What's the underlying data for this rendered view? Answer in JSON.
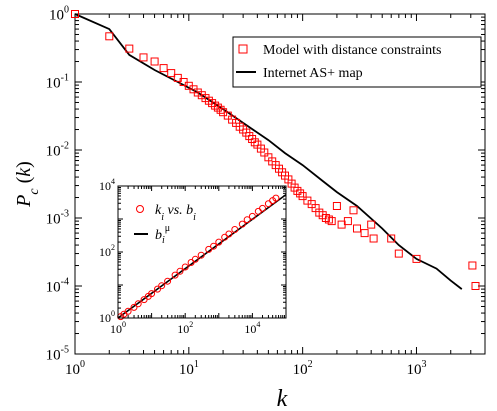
{
  "chart_data": [
    {
      "type": "scatter",
      "title": "",
      "xlabel": "k",
      "ylabel": "P_c (k)",
      "xscale": "log",
      "yscale": "log",
      "xlim": [
        1,
        4000
      ],
      "ylim": [
        1e-05,
        1
      ],
      "x_ticks": [
        {
          "value": 1,
          "base": "10",
          "exp": "0"
        },
        {
          "value": 10,
          "base": "10",
          "exp": "1"
        },
        {
          "value": 100,
          "base": "10",
          "exp": "2"
        },
        {
          "value": 1000,
          "base": "10",
          "exp": "3"
        }
      ],
      "y_ticks": [
        {
          "value": 1e-05,
          "base": "10",
          "exp": "-5"
        },
        {
          "value": 0.0001,
          "base": "10",
          "exp": "-4"
        },
        {
          "value": 0.001,
          "base": "10",
          "exp": "-3"
        },
        {
          "value": 0.01,
          "base": "10",
          "exp": "-2"
        },
        {
          "value": 0.1,
          "base": "10",
          "exp": "-1"
        },
        {
          "value": 1,
          "base": "10",
          "exp": "0"
        }
      ],
      "grid": false,
      "legend_position": "top-right",
      "series": [
        {
          "name": "Model with distance constraints",
          "kind": "scatter",
          "marker": "open-square",
          "color": "#ff0000",
          "x": [
            1,
            2,
            3,
            4,
            5,
            6,
            7,
            8,
            9,
            10,
            11,
            12,
            13,
            14,
            15,
            16,
            17,
            18,
            19,
            20,
            22,
            24,
            26,
            28,
            30,
            32,
            34,
            36,
            38,
            40,
            43,
            46,
            50,
            54,
            58,
            62,
            66,
            70,
            75,
            80,
            85,
            90,
            95,
            100,
            110,
            120,
            130,
            140,
            150,
            160,
            170,
            180,
            200,
            220,
            250,
            280,
            300,
            350,
            400,
            420,
            600,
            700,
            1000,
            3100,
            3300
          ],
          "y": [
            1.0,
            0.47,
            0.31,
            0.23,
            0.2,
            0.16,
            0.135,
            0.115,
            0.1,
            0.088,
            0.078,
            0.07,
            0.064,
            0.058,
            0.053,
            0.049,
            0.045,
            0.042,
            0.039,
            0.036,
            0.032,
            0.028,
            0.025,
            0.022,
            0.02,
            0.018,
            0.016,
            0.0145,
            0.013,
            0.012,
            0.0105,
            0.0092,
            0.0078,
            0.0068,
            0.006,
            0.0053,
            0.0047,
            0.0042,
            0.0037,
            0.0032,
            0.0028,
            0.0025,
            0.0023,
            0.0021,
            0.0018,
            0.0016,
            0.0014,
            0.0012,
            0.0011,
            0.001,
            0.00095,
            0.0009,
            0.0015,
            0.0008,
            0.0009,
            0.0013,
            0.0007,
            0.0006,
            0.0008,
            0.0005,
            0.0005,
            0.0003,
            0.00025,
            0.0002,
            0.0001
          ]
        },
        {
          "name": "Internet AS+ map",
          "kind": "line",
          "color": "#000000",
          "x": [
            1,
            2,
            3,
            5,
            8,
            12,
            20,
            30,
            50,
            70,
            100,
            150,
            200,
            300,
            500,
            700,
            1000,
            1500,
            2000,
            2500
          ],
          "y": [
            1.0,
            0.6,
            0.25,
            0.15,
            0.1,
            0.07,
            0.04,
            0.025,
            0.014,
            0.009,
            0.006,
            0.0035,
            0.0024,
            0.0015,
            0.0007,
            0.0004,
            0.00025,
            0.00018,
            0.00012,
            9e-05
          ]
        }
      ]
    },
    {
      "type": "scatter",
      "title": "",
      "xlabel": "",
      "ylabel": "",
      "xscale": "log",
      "yscale": "log",
      "xlim": [
        1,
        100000
      ],
      "ylim": [
        1,
        10000
      ],
      "x_ticks": [
        {
          "value": 1,
          "base": "10",
          "exp": "0"
        },
        {
          "value": 100,
          "base": "10",
          "exp": "2"
        },
        {
          "value": 10000,
          "base": "10",
          "exp": "4"
        }
      ],
      "y_ticks": [
        {
          "value": 1,
          "base": "10",
          "exp": "0"
        },
        {
          "value": 100,
          "base": "10",
          "exp": "2"
        },
        {
          "value": 10000,
          "base": "10",
          "exp": "4"
        }
      ],
      "grid": false,
      "legend_position": "top-left",
      "legend_labels": [
        {
          "main": "k",
          "sub": "i",
          "mid": " vs. ",
          "main2": "b",
          "sub2": "i"
        },
        {
          "main": "b",
          "sub": "i",
          "sup": "μ"
        }
      ],
      "series": [
        {
          "name": "k_i vs. b_i",
          "kind": "scatter",
          "marker": "open-circle",
          "color": "#ff0000",
          "x": [
            1.2,
            1.5,
            2,
            3,
            4,
            6,
            8,
            10,
            15,
            20,
            30,
            50,
            70,
            100,
            150,
            200,
            300,
            500,
            700,
            1000,
            1500,
            2000,
            3000,
            5000,
            7000,
            10000,
            15000,
            20000,
            30000,
            40000,
            50000
          ],
          "y": [
            1.1,
            1.3,
            1.6,
            2.1,
            2.7,
            3.6,
            4.5,
            5.5,
            7.5,
            9.5,
            13,
            20,
            26,
            35,
            48,
            60,
            80,
            120,
            150,
            200,
            280,
            350,
            480,
            700,
            950,
            1200,
            1700,
            2100,
            2900,
            3600,
            4300
          ]
        },
        {
          "name": "b_i^μ",
          "kind": "line",
          "color": "#000000",
          "x": [
            1,
            100000
          ],
          "y": [
            1,
            5500
          ]
        }
      ]
    }
  ]
}
